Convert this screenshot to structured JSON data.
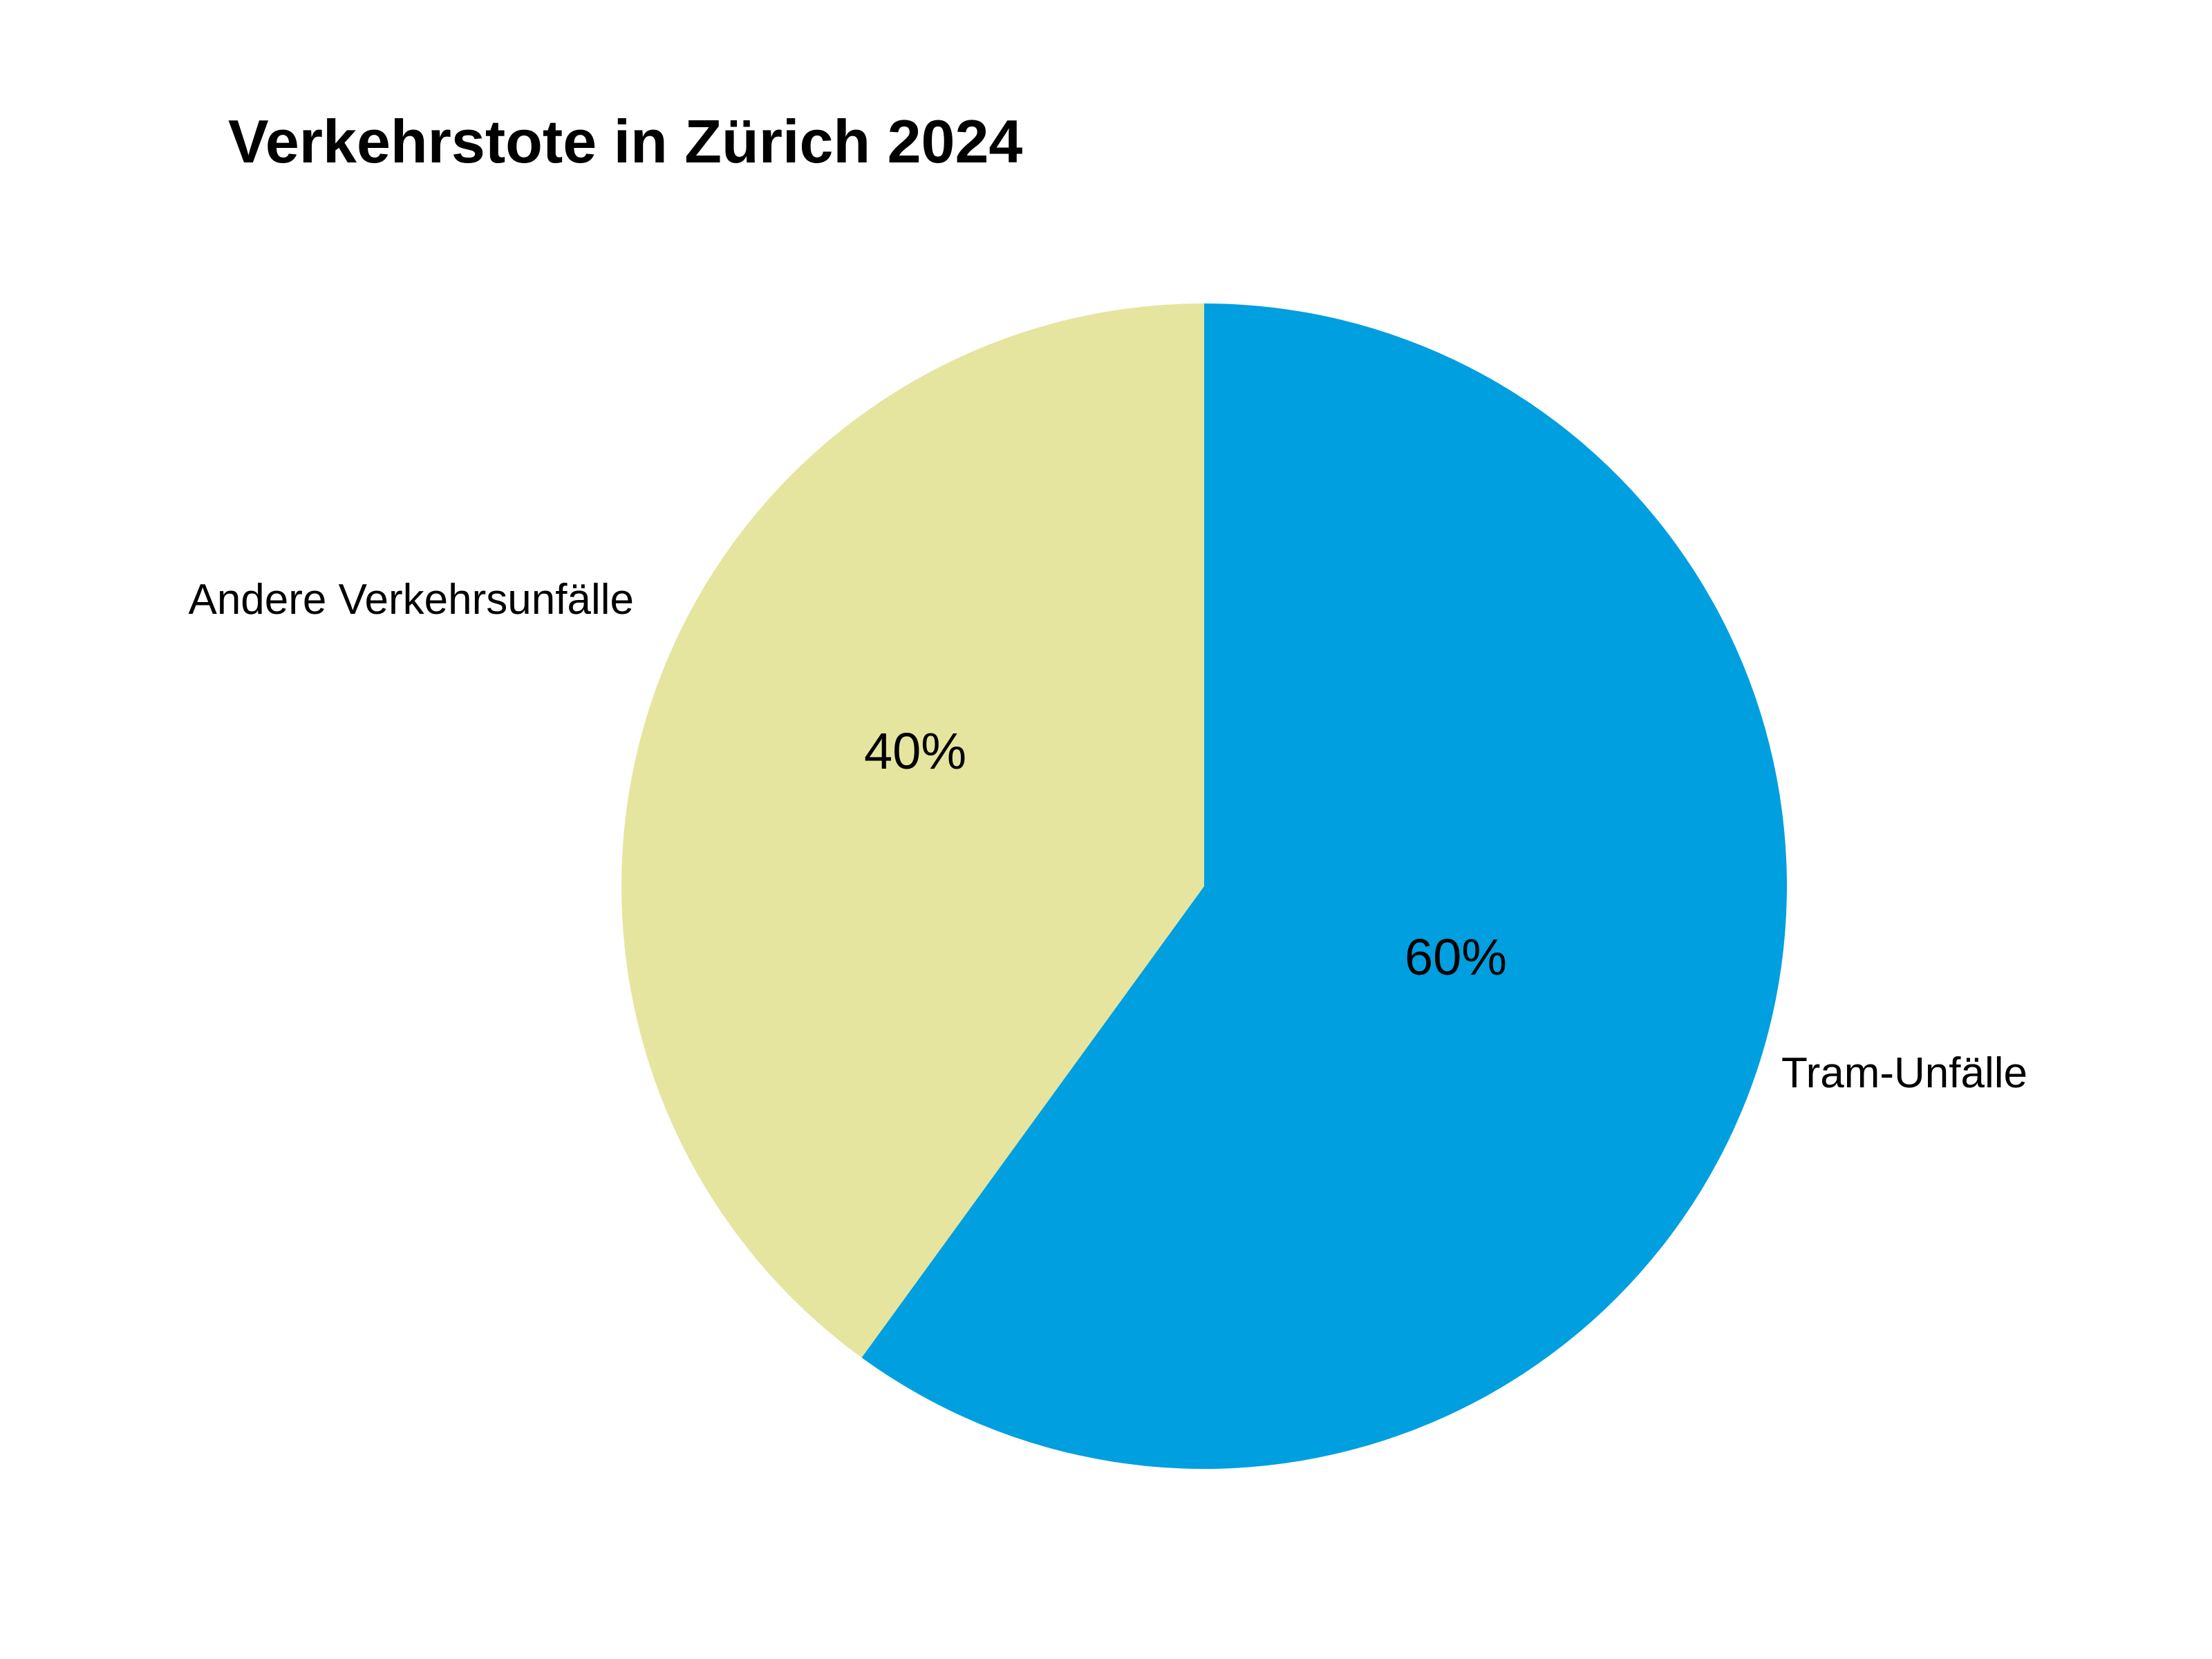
{
  "chart_data": {
    "type": "pie",
    "title": "Verkehrstote in Zürich 2024",
    "start_angle_deg": 0,
    "direction": "clockwise",
    "slices": [
      {
        "category": "Tram-Unfälle",
        "value": 60,
        "value_label": "60%",
        "color": "#009FDF"
      },
      {
        "category": "Andere Verkehrsunfälle",
        "value": 40,
        "value_label": "40%",
        "color": "#E5E59F"
      }
    ]
  }
}
